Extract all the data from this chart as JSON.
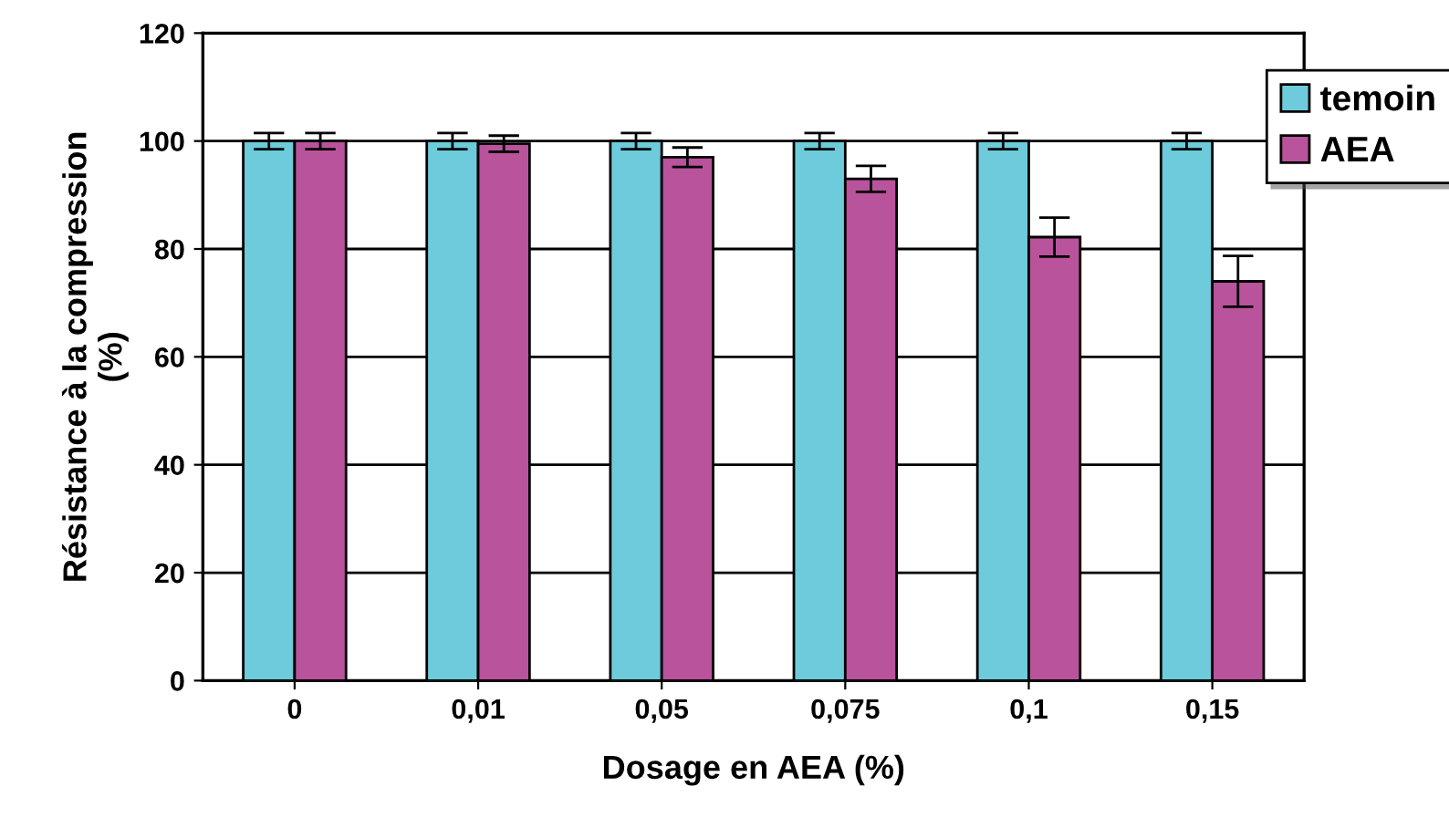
{
  "chart_data": {
    "type": "bar",
    "xlabel": "Dosage en AEA (%)",
    "ylabel": "Résistance à la compression\n(%)",
    "categories": [
      "0",
      "0,01",
      "0,05",
      "0,075",
      "0,1",
      "0,15"
    ],
    "series": [
      {
        "name": "temoin",
        "color": "#6dcbdb",
        "values": [
          100,
          100,
          100,
          100,
          100,
          100
        ],
        "errors": [
          1.5,
          1.5,
          1.5,
          1.5,
          1.5,
          1.5
        ]
      },
      {
        "name": "AEA",
        "color": "#b9539c",
        "values": [
          100,
          99.5,
          97,
          93,
          82.2,
          74
        ],
        "errors": [
          1.5,
          1.5,
          1.8,
          2.4,
          3.6,
          4.7
        ]
      }
    ],
    "ylim": [
      0,
      120
    ],
    "yticks": [
      0,
      20,
      40,
      60,
      80,
      100,
      120
    ],
    "grid": "y",
    "legend": "top right"
  }
}
